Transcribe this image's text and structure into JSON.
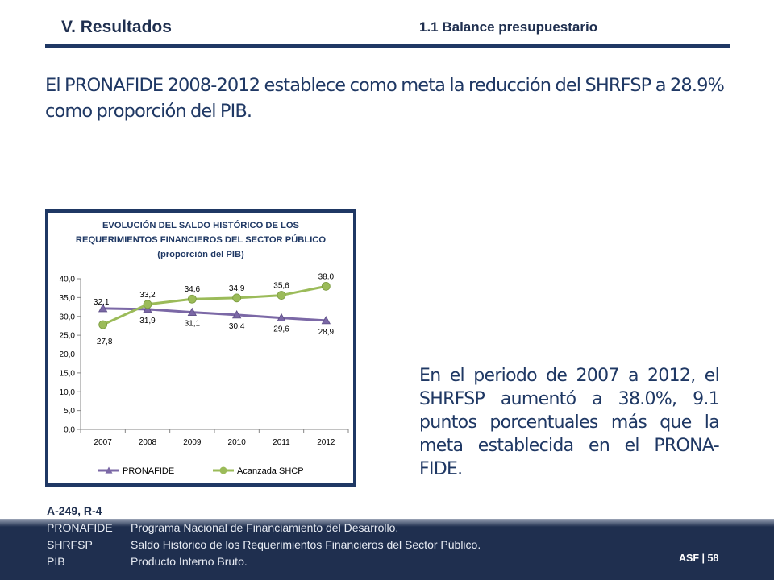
{
  "header": {
    "section": "V. Resultados",
    "subsection": "1.1 Balance presupuestario"
  },
  "intro_text": "El PRONAFIDE 2008-2012 establece como meta la reducción del SHRFSP a 28.9% como proporción del PIB.",
  "side_text": "En el periodo de 2007 a 2012, el SHRFSP aumentó a 38.0%, 9.1 puntos porcentuales más que la meta establecida en el PRONA-FIDE.",
  "reference": "A-249, R-4",
  "glossary": [
    {
      "abbr": "PRONAFIDE",
      "text": "Programa Nacional de Financiamiento del Desarrollo."
    },
    {
      "abbr": "SHRFSP",
      "text": "Saldo Histórico de los Requerimientos Financieros del Sector Público."
    },
    {
      "abbr": "PIB",
      "text": "Producto Interno Bruto."
    }
  ],
  "footer": {
    "page_label": "ASF | 58"
  },
  "colors": {
    "navy": "#1f3864",
    "pronafide": "#7b68a6",
    "shcp": "#9bbb59",
    "footer": "#1f2f4f"
  },
  "chart_data": {
    "type": "line",
    "title": "EVOLUCIÓN DEL SALDO HISTÓRICO DE LOS REQUERIMIENTOS FINANCIEROS DEL SECTOR PÚBLICO",
    "subtitle": "(proporción del PIB)",
    "categories": [
      "2007",
      "2008",
      "2009",
      "2010",
      "2011",
      "2012"
    ],
    "ylim": [
      0,
      40
    ],
    "yticks": [
      "0,0",
      "5,0",
      "10,0",
      "15,0",
      "20,0",
      "25,0",
      "30,0",
      "35,0",
      "40,0"
    ],
    "grid": false,
    "legend_position": "bottom",
    "series": [
      {
        "name": "PRONAFIDE",
        "marker": "triangle",
        "values": [
          32.1,
          31.9,
          31.1,
          30.4,
          29.6,
          28.9
        ],
        "labels": [
          "32,1",
          "31,9",
          "31,1",
          "30,4",
          "29,6",
          "28,9"
        ]
      },
      {
        "name": "Acanzada SHCP",
        "marker": "circle",
        "values": [
          27.8,
          33.2,
          34.6,
          34.9,
          35.6,
          38.0
        ],
        "labels": [
          "27,8",
          "33,2",
          "34,6",
          "34,9",
          "35,6",
          "38.0"
        ]
      }
    ]
  }
}
